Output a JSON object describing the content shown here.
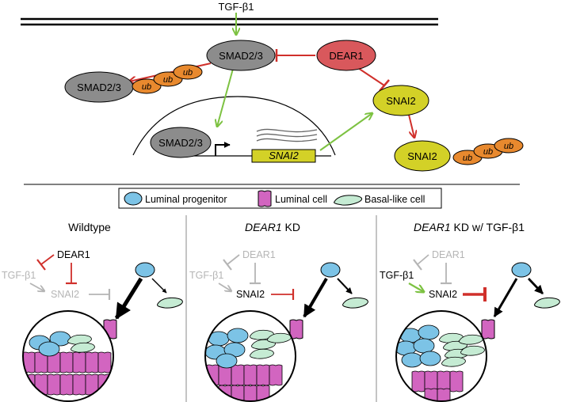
{
  "colors": {
    "green": "#7dc242",
    "red": "#d0302b",
    "gray_node": "#8c8c8c",
    "dear1_node": "#d9585c",
    "snai2_node": "#d3d127",
    "ub_node": "#e8892e",
    "luminal_progenitor": "#7cc3e6",
    "luminal_cell": "#d265c0",
    "basal_cell": "#c5ebd3",
    "faded": "#b5b5b5"
  },
  "top": {
    "ligand": "TGF-β1",
    "smad_cyto": "SMAD2/3",
    "dear1": "DEAR1",
    "smad_ub": "SMAD2/3",
    "ub_tag": "ub",
    "snai2_cyto": "SNAI2",
    "smad_nuclear": "SMAD2/3",
    "gene": "SNAI2",
    "snai2_ub": "SNAI2"
  },
  "legend": {
    "luminal_progenitor": "Luminal progenitor",
    "luminal_cell": "Luminal cell",
    "basal_cell": "Basal-like cell"
  },
  "panels": [
    {
      "title": "Wildtype",
      "title_gene": "",
      "title_rest": "",
      "dear1": "DEAR1",
      "tgf": "TGF-β1",
      "snai2": "SNAI2"
    },
    {
      "title": "",
      "title_gene": "DEAR1",
      "title_rest": " KD",
      "dear1": "DEAR1",
      "tgf": "TGF-β1",
      "snai2": "SNAI2"
    },
    {
      "title": "",
      "title_gene": "DEAR1",
      "title_rest": " KD w/ TGF-β1",
      "dear1": "DEAR1",
      "tgf": "TGF-β1",
      "snai2": "SNAI2"
    }
  ]
}
